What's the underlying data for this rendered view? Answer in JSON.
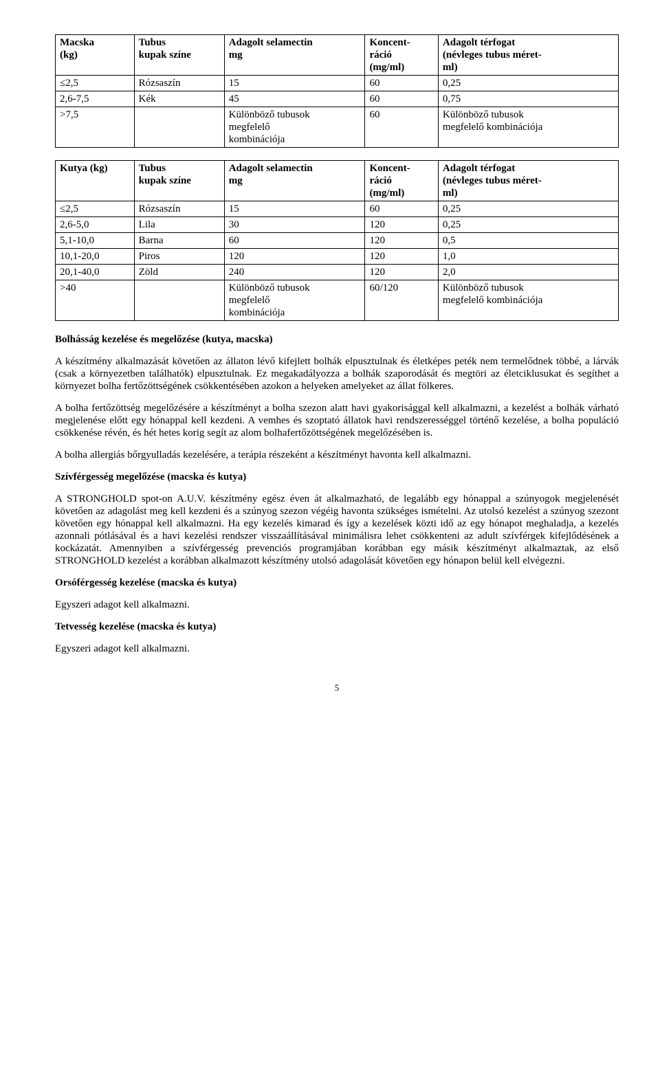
{
  "table1": {
    "headers": {
      "c1a": "Macska",
      "c1b": "(kg)",
      "c2a": "Tubus",
      "c2b": "kupak színe",
      "c3a": "Adagolt selamectin",
      "c3b": "mg",
      "c4a": "Koncent-",
      "c4b": "ráció",
      "c4c": "(mg/ml)",
      "c5a": "Adagolt térfogat",
      "c5b": "(névleges tubus méret-",
      "c5c": "ml)"
    },
    "r1": {
      "c1": "≤2,5",
      "c2": "Rózsaszín",
      "c3": "15",
      "c4": "60",
      "c5": "0,25"
    },
    "r2": {
      "c1": "2,6-7,5",
      "c2": "Kék",
      "c3": "45",
      "c4": "60",
      "c5": "0,75"
    },
    "r3": {
      "c1": ">7,5",
      "c2": "",
      "c3a": "Különböző tubusok",
      "c3b": "megfelelő",
      "c3c": "kombinációja",
      "c4": "60",
      "c5a": "Különböző tubusok",
      "c5b": "megfelelő kombinációja"
    }
  },
  "table2": {
    "headers": {
      "c1": "Kutya (kg)",
      "c2a": "Tubus",
      "c2b": "kupak színe",
      "c3a": "Adagolt selamectin",
      "c3b": "mg",
      "c4a": "Koncent-",
      "c4b": "ráció",
      "c4c": "(mg/ml)",
      "c5a": "Adagolt térfogat",
      "c5b": "(névleges tubus méret-",
      "c5c": "ml)"
    },
    "r1": {
      "c1": "≤2,5",
      "c2": "Rózsaszín",
      "c3": "15",
      "c4": "60",
      "c5": "0,25"
    },
    "r2": {
      "c1": "2,6-5,0",
      "c2": "Lila",
      "c3": "30",
      "c4": "120",
      "c5": "0,25"
    },
    "r3": {
      "c1": "5,1-10,0",
      "c2": "Barna",
      "c3": "60",
      "c4": "120",
      "c5": "0,5"
    },
    "r4": {
      "c1": "10,1-20,0",
      "c2": "Piros",
      "c3": "120",
      "c4": "120",
      "c5": "1,0"
    },
    "r5": {
      "c1": "20,1-40,0",
      "c2": "Zöld",
      "c3": "240",
      "c4": "120",
      "c5": "2,0"
    },
    "r6": {
      "c1": ">40",
      "c2": "",
      "c3a": "Különböző tubusok",
      "c3b": "megfelelő",
      "c3c": "kombinációja",
      "c4": "60/120",
      "c5a": "Különböző tubusok",
      "c5b": "megfelelő kombinációja"
    }
  },
  "h1": "Bolhásság kezelése és megelőzése (kutya, macska)",
  "p1": "A készítmény alkalmazását követően az állaton lévő kifejlett bolhák elpusztulnak és életképes peték nem termelődnek többé, a lárvák (csak a környezetben találhatók) elpusztulnak. Ez megakadályozza a bolhák szaporodását és megtöri az életciklusukat és segíthet a környezet bolha fertőzöttségének csökkentésében azokon a helyeken amelyeket az állat fölkeres.",
  "p2": "A bolha fertőzöttség megelőzésére a készítményt a bolha szezon alatt havi gyakorisággal kell alkalmazni, a kezelést a bolhák várható megjelenése előtt egy hónappal kell kezdeni. A vemhes és szoptató állatok havi rendszerességgel történő kezelése, a bolha populáció csökkenése révén, és hét hetes korig segít az alom bolhafertőzöttségének megelőzésében is.",
  "p3": "A bolha allergiás bőrgyulladás kezelésére, a terápia részeként a készítményt havonta kell alkalmazni.",
  "h2": "Szívférgesség megelőzése (macska és kutya)",
  "p4": "A STRONGHOLD spot-on A.U.V. készítmény egész éven át alkalmazható, de legalább egy hónappal a szúnyogok megjelenését követően az adagolást meg kell kezdeni és a szúnyog szezon végéig havonta szükséges ismételni. Az utolsó kezelést a szúnyog szezont követően egy hónappal kell alkalmazni. Ha egy kezelés kimarad és így a kezelések közti idő az egy hónapot meghaladja, a kezelés azonnali pótlásával és a havi kezelési rendszer visszaállításával minimálisra lehet csökkenteni az adult szívférgek kifejlődésének a kockázatát. Amennyiben a szívférgesség prevenciós programjában korábban egy másik készítményt alkalmaztak, az első STRONGHOLD kezelést a korábban alkalmazott készítmény utolsó adagolását követően egy hónapon belül kell elvégezni.",
  "h3": "Orsóférgesség kezelése (macska és kutya)",
  "p5": "Egyszeri adagot kell alkalmazni.",
  "h4": "Tetvesség kezelése (macska és kutya)",
  "p6": "Egyszeri adagot kell alkalmazni.",
  "pgnum": "5"
}
